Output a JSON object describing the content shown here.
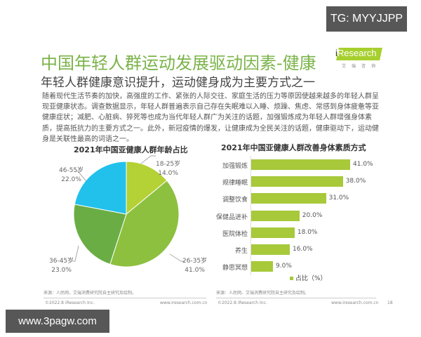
{
  "watermark_top": "TG: MYYJJPP",
  "watermark_bottom": "www.3pagw.com",
  "header": {
    "title": "中国年轻人群运动发展驱动因素-健康",
    "subtitle": "年轻人群健康意识提升，运动健身成为主要方式之一",
    "logo_text": "Research",
    "logo_i": "i",
    "logo_cn": "艾瑞咨询"
  },
  "body_text": "随着现代生活节奏的加快，高强度的工作、紧张的人际交往、家庭生活的压力等原因使越来越多的年轻人群呈现亚健康状态。调查数据显示，年轻人群普遍表示自己存在失眠难以入睡、烦躁、焦虑、常感到身体疲惫等亚健康症状；减肥、心脏病、猝死等也成为当代年轻人群广为关注的话题，加强锻炼成为年轻人群增强身体素质，提高抵抗力的主要方式之一。此外，新冠疫情的爆发，让健康成为全民关注的话题，健康驱动下，运动健身是关联性最高的词语之一。",
  "chart_data": [
    {
      "type": "pie",
      "title": "2021年中国亚健康人群年龄占比",
      "categories": [
        "18-25岁",
        "26-35岁",
        "36-45岁",
        "46-55岁"
      ],
      "values": [
        14.0,
        41.0,
        23.0,
        22.0
      ],
      "value_labels": [
        "14.0%",
        "41.0%",
        "23.0%",
        "22.0%"
      ],
      "colors": [
        "#b4d135",
        "#8dc03f",
        "#6aad44",
        "#22c1ec"
      ],
      "unit": "%"
    },
    {
      "type": "bar",
      "orientation": "horizontal",
      "title": "2021年中国亚健康人群改善身体素质方式",
      "categories": [
        "加强锻炼",
        "规律睡眠",
        "调整饮食",
        "保健品进补",
        "医院体检",
        "养生",
        "静思冥想"
      ],
      "values": [
        41.0,
        38.0,
        31.0,
        20.0,
        18.0,
        16.0,
        9.0
      ],
      "value_labels": [
        "41.0%",
        "38.0%",
        "31.0%",
        "20.0%",
        "18.0%",
        "16.0%",
        "9.0%"
      ],
      "legend": [
        "占比（%）"
      ],
      "legend_position": "bottom",
      "color": "#a7c93a",
      "xlim": [
        0,
        45
      ],
      "grid": false
    }
  ],
  "pie_chart": {
    "title": "2021年中国亚健康人群年龄占比",
    "labels": [
      {
        "name": "18-25岁",
        "value": "14.0%"
      },
      {
        "name": "26-35岁",
        "value": "41.0%"
      },
      {
        "name": "36-45岁",
        "value": "23.0%"
      },
      {
        "name": "46-55岁",
        "value": "22.0%"
      }
    ]
  },
  "bar_chart": {
    "title": "2021年中国亚健康人群改善身体素质方式",
    "rows": [
      {
        "category": "加强锻炼",
        "value": "41.0%"
      },
      {
        "category": "规律睡眠",
        "value": "38.0%"
      },
      {
        "category": "调整饮食",
        "value": "31.0%"
      },
      {
        "category": "保健品进补",
        "value": "20.0%"
      },
      {
        "category": "医院体检",
        "value": "18.0%"
      },
      {
        "category": "养生",
        "value": "16.0%"
      },
      {
        "category": "静思冥想",
        "value": "9.0%"
      }
    ],
    "legend": "占比（%）"
  },
  "footer": {
    "source_left": "来源：人民网，艾瑞消费研究院自主研究及绘制。",
    "source_right": "来源：人民网、艾瑞消费研究院自主研究及绘制。",
    "copyright_left": "©2022.8 iResearch Inc.",
    "url_left": "www.iresearch.com.cn",
    "copyright_right": "©2022.8 iResearch Inc.",
    "url_right": "www.iresearch.com.cn",
    "page_number": "18"
  }
}
